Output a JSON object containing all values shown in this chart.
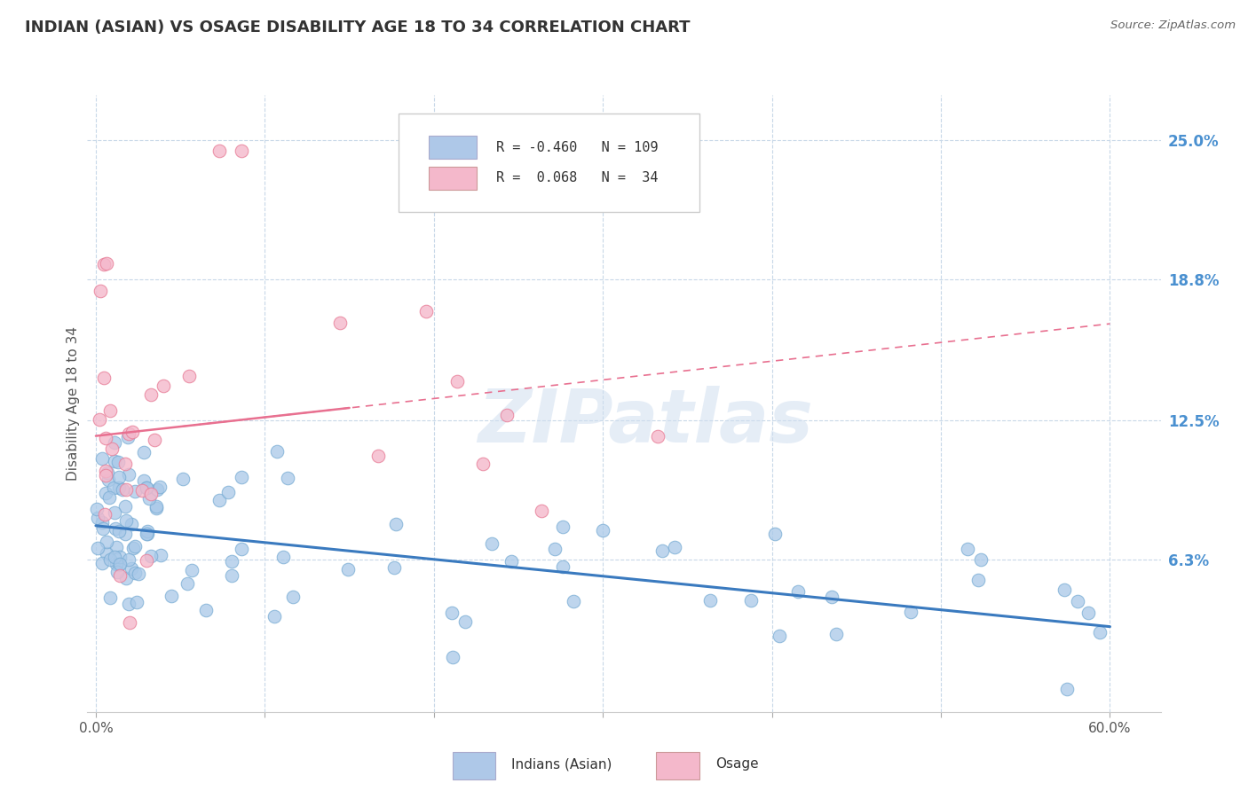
{
  "title": "INDIAN (ASIAN) VS OSAGE DISABILITY AGE 18 TO 34 CORRELATION CHART",
  "source": "Source: ZipAtlas.com",
  "xlabel_ticks_labels": [
    "0.0%",
    "",
    "",
    "",
    "",
    "",
    "60.0%"
  ],
  "xlabel_vals": [
    0.0,
    0.1,
    0.2,
    0.3,
    0.4,
    0.5,
    0.6
  ],
  "ylabel": "Disability Age 18 to 34",
  "ylabel_ticks": [
    "6.3%",
    "12.5%",
    "18.8%",
    "25.0%"
  ],
  "ylabel_vals": [
    0.063,
    0.125,
    0.188,
    0.25
  ],
  "ylim": [
    -0.005,
    0.27
  ],
  "xlim": [
    -0.005,
    0.63
  ],
  "blue_color": "#a8c8e8",
  "blue_edge_color": "#7aadd4",
  "pink_color": "#f4b8cb",
  "pink_edge_color": "#e8809a",
  "blue_line_color": "#3a7abf",
  "pink_line_color": "#e87090",
  "watermark_color": "#d0dff0",
  "background_color": "#ffffff",
  "grid_color": "#c8d8e8",
  "legend_box_blue": "#aec8e8",
  "legend_box_pink": "#f4b8cb",
  "blue_label_color": "#4a90d0",
  "ytick_color": "#4a90d0"
}
